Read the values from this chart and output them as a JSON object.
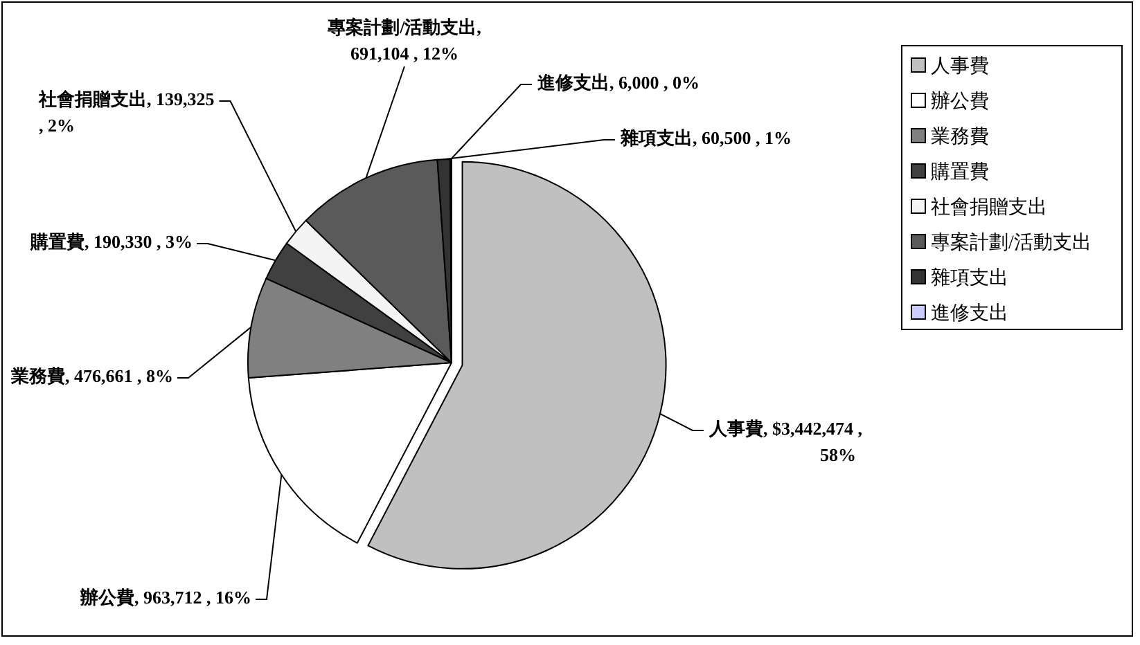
{
  "chart_data": {
    "type": "pie",
    "categories": [
      "人事費",
      "辦公費",
      "業務費",
      "購置費",
      "社會捐贈支出",
      "專案計劃/活動支出",
      "雜項支出",
      "進修支出"
    ],
    "values": [
      3442474,
      963712,
      476661,
      190330,
      139325,
      691104,
      60500,
      6000
    ],
    "value_labels": [
      "人事費, $3,442,474 ,\n58%",
      "辦公費, 963,712 , 16%",
      "業務費, 476,661 , 8%",
      "購置費, 190,330 , 3%",
      "社會捐贈支出, 139,325\n, 2%",
      "專案計劃/活動支出,\n691,104 , 12%",
      "雜項支出, 60,500 , 1%",
      "進修支出, 6,000 , 0%"
    ],
    "colors": [
      "#c0c0c0",
      "#ffffff",
      "#808080",
      "#404040",
      "#f4f4f4",
      "#5a5a5a",
      "#333333",
      "#ccccff"
    ],
    "legend": "right"
  }
}
